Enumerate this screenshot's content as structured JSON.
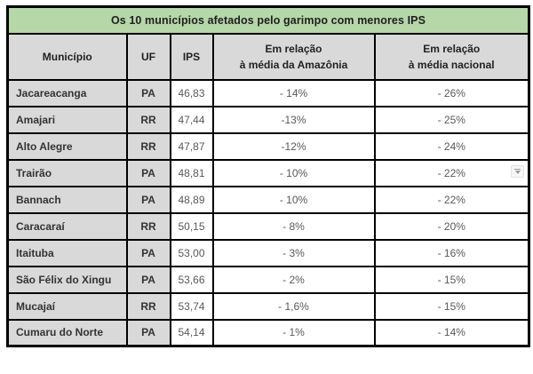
{
  "colors": {
    "title_bg": "#b6d7a8",
    "header_bg": "#d9d9d9",
    "label_bg": "#d9d9d9",
    "cell_bg": "#ffffff",
    "border": "#000000",
    "label_text": "#333333",
    "value_text": "#595959",
    "title_text": "#1f1f1f"
  },
  "table": {
    "title": "Os 10 municípios afetados pelo garimpo com menores IPS",
    "headers": [
      "Município",
      "UF",
      "IPS",
      "Em relação\nà média da Amazônia",
      "Em relação\nà média nacional"
    ],
    "rows": [
      {
        "municipio": "Jacareacanga",
        "uf": "PA",
        "ips": "46,83",
        "vs_amazonia": "- 14%",
        "vs_nacional": "- 26%"
      },
      {
        "municipio": "Amajari",
        "uf": "RR",
        "ips": "47,44",
        "vs_amazonia": "-13%",
        "vs_nacional": "- 25%"
      },
      {
        "municipio": "Alto Alegre",
        "uf": "RR",
        "ips": "47,87",
        "vs_amazonia": "-12%",
        "vs_nacional": "- 24%"
      },
      {
        "municipio": "Trairão",
        "uf": "PA",
        "ips": "48,81",
        "vs_amazonia": "- 10%",
        "vs_nacional": "- 22%"
      },
      {
        "municipio": "Bannach",
        "uf": "PA",
        "ips": "48,89",
        "vs_amazonia": "- 10%",
        "vs_nacional": "- 22%"
      },
      {
        "municipio": "Caracaraí",
        "uf": "RR",
        "ips": "50,15",
        "vs_amazonia": "- 8%",
        "vs_nacional": "- 20%"
      },
      {
        "municipio": "Itaituba",
        "uf": "PA",
        "ips": "53,00",
        "vs_amazonia": "- 3%",
        "vs_nacional": "- 16%"
      },
      {
        "municipio": "São Félix do Xingu",
        "uf": "PA",
        "ips": "53,66",
        "vs_amazonia": "- 2%",
        "vs_nacional": "- 15%"
      },
      {
        "municipio": "Mucajaí",
        "uf": "RR",
        "ips": "53,74",
        "vs_amazonia": "- 1,6%",
        "vs_nacional": "- 15%"
      },
      {
        "municipio": "Cumaru do Norte",
        "uf": "PA",
        "ips": "54,14",
        "vs_amazonia": "- 1%",
        "vs_nacional": "- 14%"
      }
    ]
  }
}
